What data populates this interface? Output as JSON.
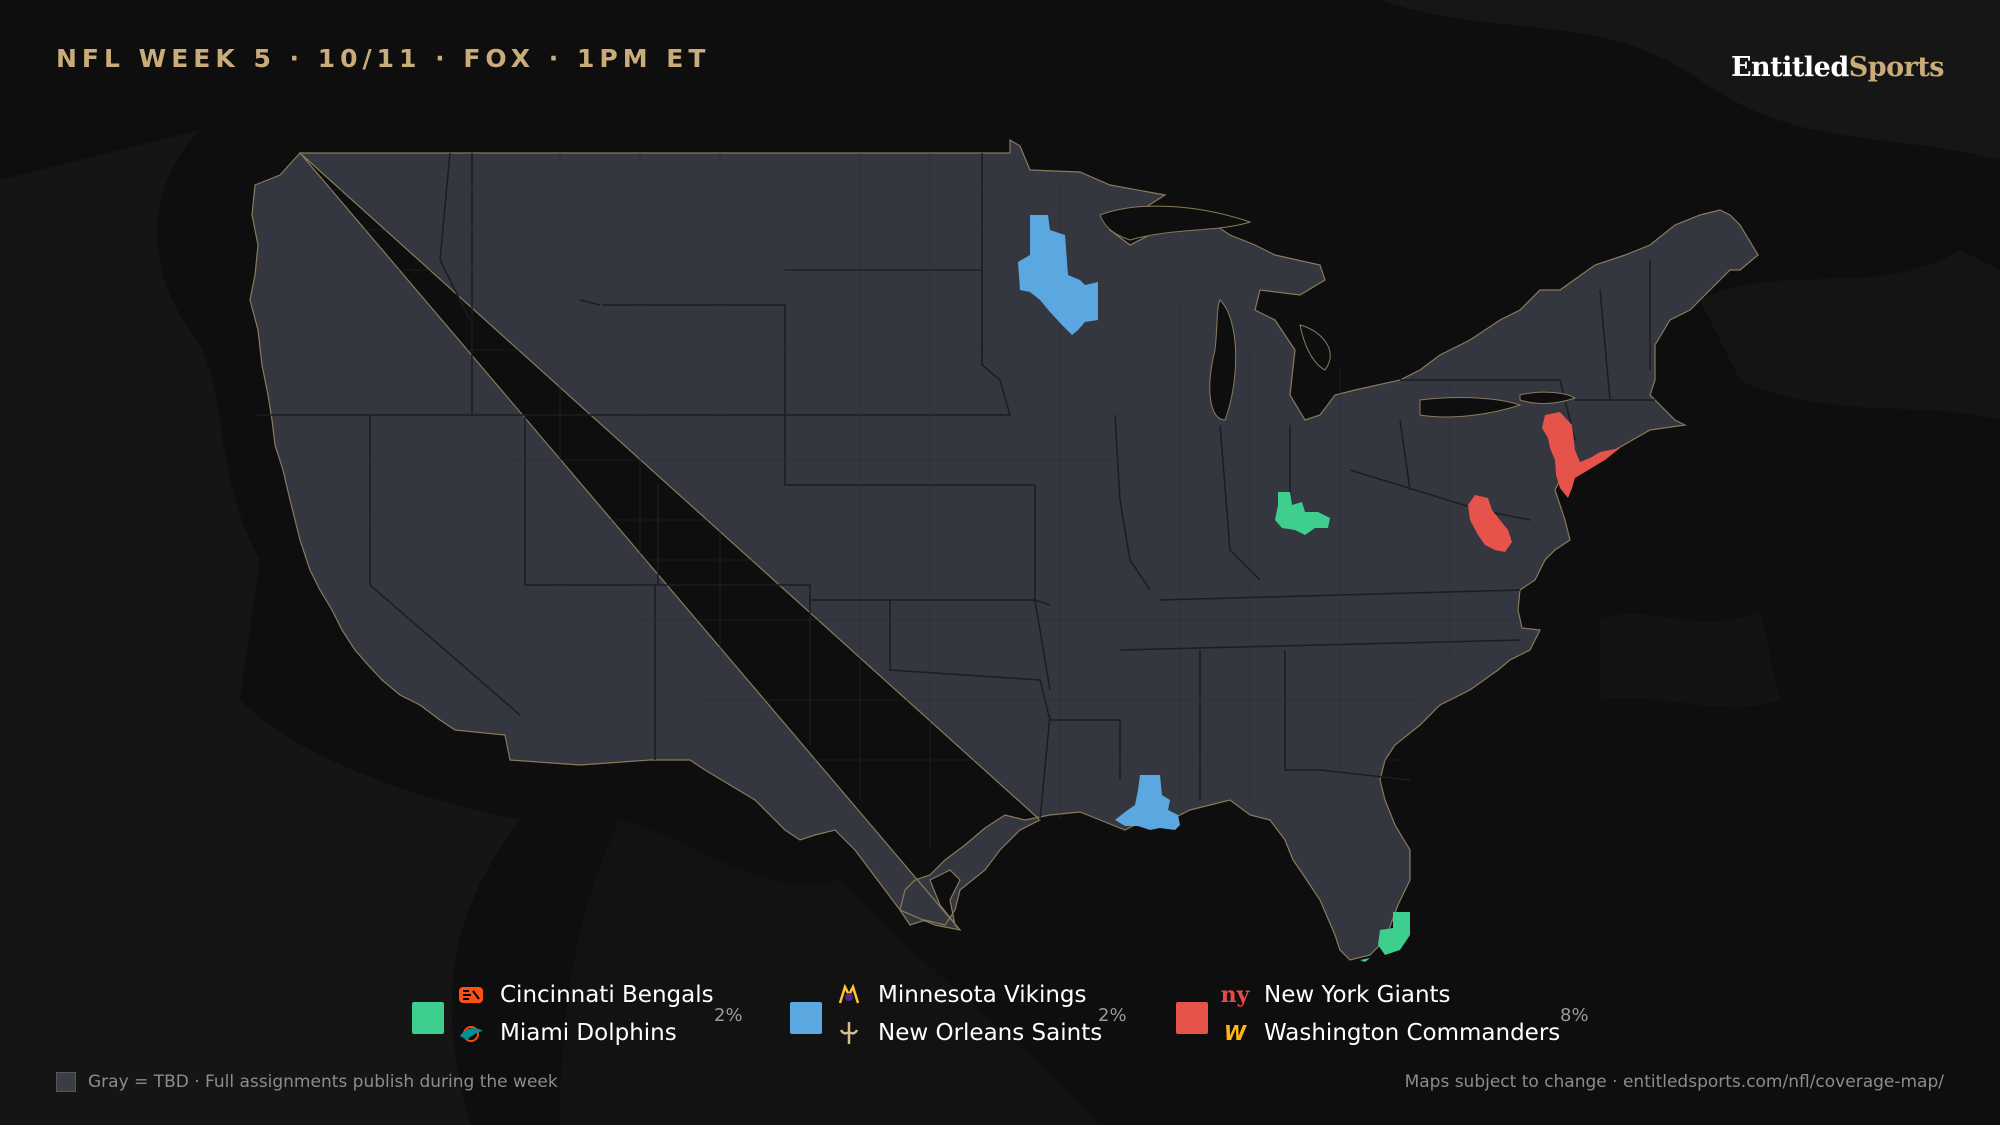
{
  "header": {
    "title": "NFL WEEK 5 · 10/11 · FOX · 1PM ET"
  },
  "brand": {
    "part1": "Entitled",
    "part2": "Sports"
  },
  "colors": {
    "background": "#0e0e0e",
    "land": "#343640",
    "accent_gold": "#c9ac7a",
    "game1": "#3ecf8e",
    "game2": "#5ba8e0",
    "game3": "#e5534b"
  },
  "legend": [
    {
      "color": "#3ecf8e",
      "percent": "2%",
      "teams": [
        {
          "name": "Cincinnati Bengals",
          "icon": "bengals-logo-icon"
        },
        {
          "name": "Miami Dolphins",
          "icon": "dolphins-logo-icon"
        }
      ]
    },
    {
      "color": "#5ba8e0",
      "percent": "2%",
      "teams": [
        {
          "name": "Minnesota Vikings",
          "icon": "vikings-logo-icon"
        },
        {
          "name": "New Orleans Saints",
          "icon": "saints-logo-icon"
        }
      ]
    },
    {
      "color": "#e5534b",
      "percent": "8%",
      "teams": [
        {
          "name": "New York Giants",
          "icon": "giants-logo-icon"
        },
        {
          "name": "Washington Commanders",
          "icon": "commanders-logo-icon"
        }
      ]
    }
  ],
  "footer": {
    "left": "Gray = TBD · Full assignments publish during the week",
    "right": "Maps subject to change · entitledsports.com/nfl/coverage-map/"
  }
}
